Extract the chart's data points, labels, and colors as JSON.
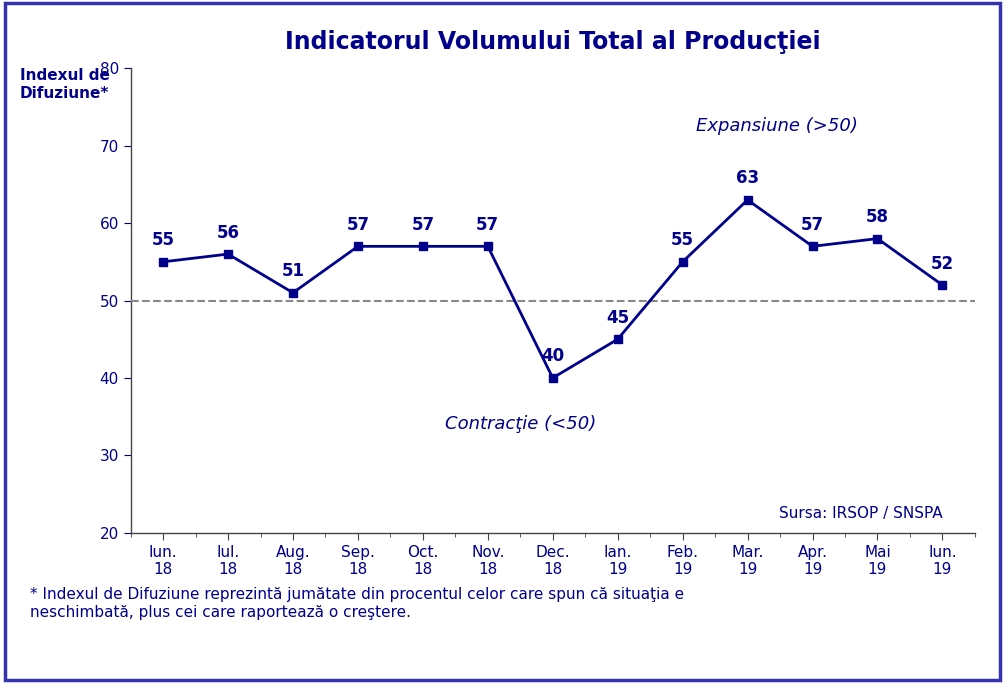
{
  "title": "Indicatorul Volumului Total al Producţiei",
  "ylabel_line1": "Indexul de",
  "ylabel_line2": "Difuziune*",
  "categories": [
    "Iun.\n18",
    "Iul.\n18",
    "Aug.\n18",
    "Sep.\n18",
    "Oct.\n18",
    "Nov.\n18",
    "Dec.\n18",
    "Ian.\n19",
    "Feb.\n19",
    "Mar.\n19",
    "Apr.\n19",
    "Mai\n19",
    "Iun.\n19"
  ],
  "values": [
    55,
    56,
    51,
    57,
    57,
    57,
    40,
    45,
    55,
    63,
    57,
    58,
    52
  ],
  "line_color": "#00008B",
  "marker_style": "s",
  "marker_size": 6,
  "line_width": 2.0,
  "ylim": [
    20,
    80
  ],
  "yticks": [
    20,
    30,
    40,
    50,
    60,
    70,
    80
  ],
  "threshold": 50,
  "threshold_color": "#888888",
  "expansion_label": "Expansiune (>50)",
  "contraction_label": "Contracţie (<50)",
  "source_label": "Sursa: IRSOP / SNSPA",
  "footnote": "* Indexul de Difuziune reprezintă jumătate din procentul celor care spun că situaţia e\nneschimbată, plus cei care raportează o creştere.",
  "background_color": "#ffffff",
  "border_color": "#3333aa",
  "text_color": "#00008B",
  "title_fontsize": 17,
  "label_fontsize": 11,
  "tick_fontsize": 11,
  "annotation_fontsize": 12,
  "italic_fontsize": 13,
  "source_fontsize": 11,
  "footnote_fontsize": 11
}
